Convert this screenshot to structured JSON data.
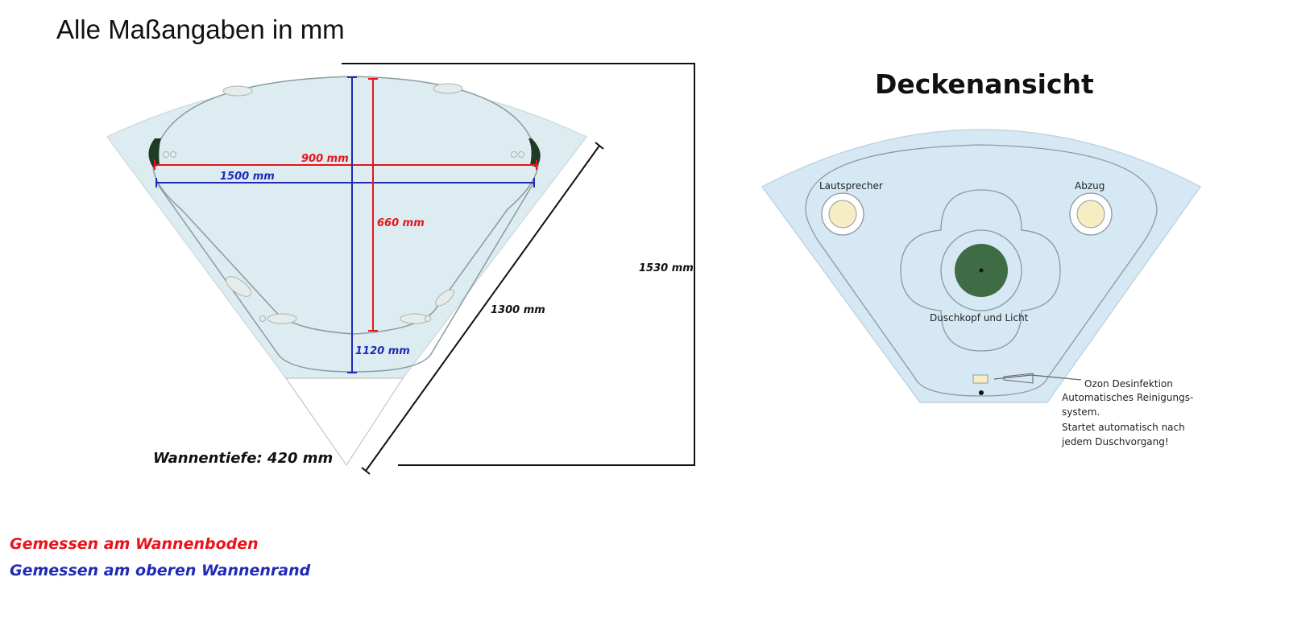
{
  "title": "Alle Maßangaben in mm",
  "left_plan": {
    "dim_900": "900 mm",
    "dim_1500": "1500 mm",
    "dim_660": "660 mm",
    "dim_1120": "1120 mm",
    "dim_1300": "1300 mm",
    "dim_1530": "1530 mm",
    "depth": "Wannentiefe: 420 mm"
  },
  "right_plan": {
    "heading": "Deckenansicht",
    "speaker": "Lautsprecher",
    "exhaust": "Abzug",
    "shower": "Duschkopf und Licht",
    "ozone_lines": [
      "Ozon Desinfektion",
      "Automatisches Reinigungs-",
      "system.",
      "Startet automatisch nach",
      "jedem Duschvorgang!"
    ]
  },
  "legend": {
    "floor": "Gemessen am Wannenboden",
    "rim": "Gemessen am oberen Wannenrand"
  },
  "colors": {
    "red": "#e8141b",
    "blue": "#1f2bb5",
    "fill": "#dcecf0",
    "ceiling_fill": "#d6e8f4",
    "green": "#3f6b45"
  }
}
